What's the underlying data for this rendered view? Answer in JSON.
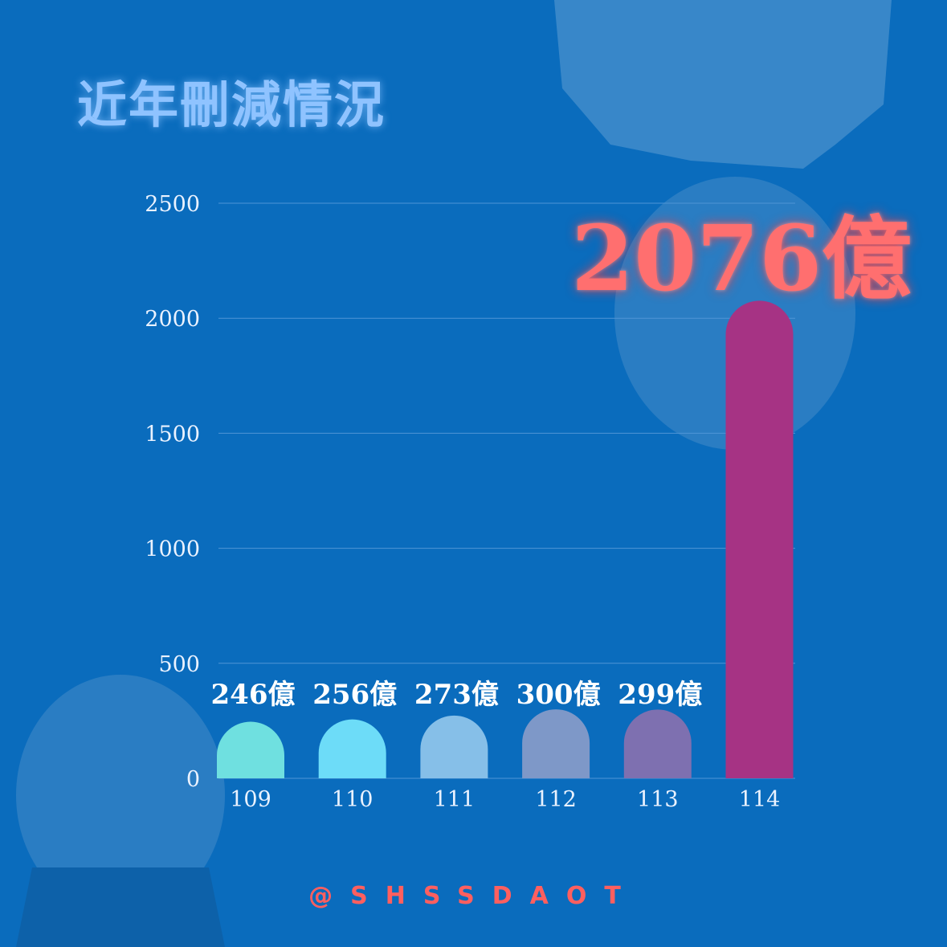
{
  "title": "近年刪減情況",
  "highlight_value": "2076億",
  "handle": "@SHSSDAOT",
  "colors": {
    "background": "#0a6cbd",
    "title": "#8fc3ff",
    "highlight": "#ff6f6f",
    "gridline": "#4f95d6",
    "bars": [
      "#6fe0e0",
      "#6ddcf8",
      "#86bfe8",
      "#7e98c8",
      "#7e70b0",
      "#a63384"
    ]
  },
  "chart_data": {
    "type": "bar",
    "categories": [
      "109",
      "110",
      "111",
      "112",
      "113",
      "114"
    ],
    "values": [
      246,
      256,
      273,
      300,
      299,
      2076
    ],
    "data_labels": [
      "246億",
      "256億",
      "273億",
      "300億",
      "299億",
      "2076億"
    ],
    "yticks": [
      "0",
      "500",
      "1000",
      "1500",
      "2000",
      "2500"
    ],
    "ylim": [
      0,
      2500
    ],
    "grid": true,
    "legend": "none",
    "title": "近年刪減情況"
  }
}
